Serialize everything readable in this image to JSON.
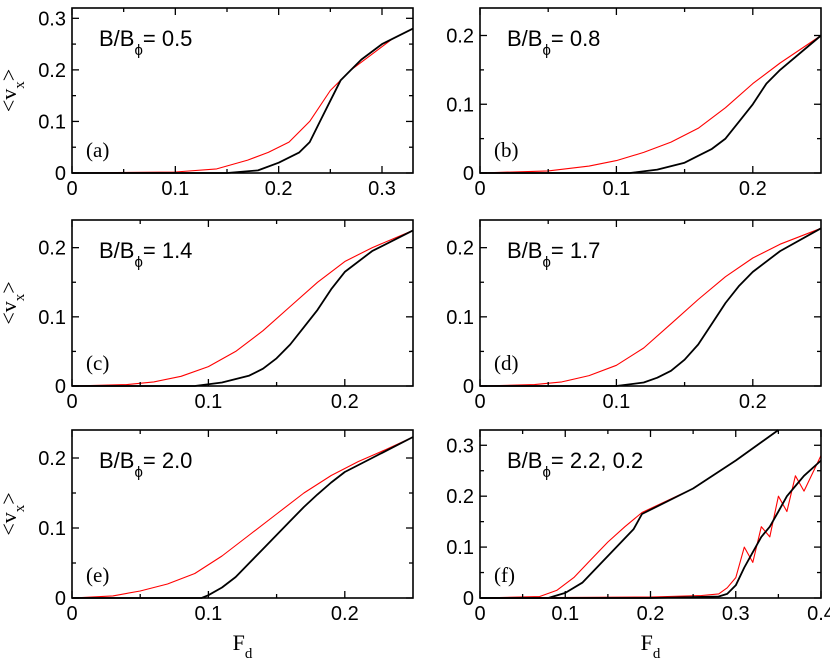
{
  "chart_data": [
    {
      "type": "line",
      "panel_label": "(a)",
      "annotation": {
        "pre": "B/B",
        "sub": "ϕ",
        "post": "= 0.5"
      },
      "xlim": [
        0,
        0.33
      ],
      "ylim": [
        0,
        0.32
      ],
      "xticks": [
        0,
        0.1,
        0.2,
        0.3
      ],
      "xtick_labels": [
        "0",
        "0.1",
        "0.2",
        "0.3"
      ],
      "yticks": [
        0,
        0.1,
        0.2,
        0.3
      ],
      "ytick_labels": [
        "0",
        "0.1",
        "0.2",
        "0.3"
      ],
      "ylabel": {
        "main": "<v",
        "sub": "x",
        "end": ">"
      },
      "xlabel": null,
      "series": [
        {
          "color": "#ff0000",
          "x": [
            0,
            0.1,
            0.14,
            0.17,
            0.19,
            0.21,
            0.23,
            0.25,
            0.27,
            0.29,
            0.31,
            0.33
          ],
          "y": [
            0,
            0.002,
            0.008,
            0.025,
            0.04,
            0.06,
            0.1,
            0.16,
            0.2,
            0.23,
            0.26,
            0.28
          ]
        },
        {
          "color": "#000000",
          "x": [
            0,
            0.15,
            0.18,
            0.2,
            0.22,
            0.23,
            0.24,
            0.25,
            0.26,
            0.27,
            0.28,
            0.3,
            0.33
          ],
          "y": [
            0,
            0,
            0.005,
            0.02,
            0.04,
            0.06,
            0.1,
            0.14,
            0.18,
            0.2,
            0.22,
            0.25,
            0.28
          ]
        }
      ]
    },
    {
      "type": "line",
      "panel_label": "(b)",
      "annotation": {
        "pre": "B/B",
        "sub": "ϕ",
        "post": "= 0.8"
      },
      "xlim": [
        0,
        0.25
      ],
      "ylim": [
        0,
        0.24
      ],
      "xticks": [
        0,
        0.1,
        0.2
      ],
      "xtick_labels": [
        "0",
        "0.1",
        "0.2"
      ],
      "yticks": [
        0,
        0.1,
        0.2
      ],
      "ytick_labels": [
        "0",
        "0.1",
        "0.2"
      ],
      "ylabel": null,
      "xlabel": null,
      "series": [
        {
          "color": "#ff0000",
          "x": [
            0,
            0.05,
            0.08,
            0.1,
            0.12,
            0.14,
            0.16,
            0.18,
            0.2,
            0.22,
            0.25
          ],
          "y": [
            0,
            0.003,
            0.01,
            0.018,
            0.03,
            0.045,
            0.065,
            0.095,
            0.13,
            0.16,
            0.2
          ]
        },
        {
          "color": "#000000",
          "x": [
            0,
            0.11,
            0.13,
            0.15,
            0.16,
            0.17,
            0.18,
            0.19,
            0.2,
            0.21,
            0.22,
            0.25
          ],
          "y": [
            0,
            0,
            0.005,
            0.015,
            0.025,
            0.035,
            0.05,
            0.075,
            0.1,
            0.13,
            0.15,
            0.2
          ]
        }
      ]
    },
    {
      "type": "line",
      "panel_label": "(c)",
      "annotation": {
        "pre": "B/B",
        "sub": "ϕ",
        "post": "= 1.4"
      },
      "xlim": [
        0,
        0.25
      ],
      "ylim": [
        0,
        0.24
      ],
      "xticks": [
        0,
        0.1,
        0.2
      ],
      "xtick_labels": [
        "0",
        "0.1",
        "0.2"
      ],
      "yticks": [
        0,
        0.1,
        0.2
      ],
      "ytick_labels": [
        "0",
        "0.1",
        "0.2"
      ],
      "ylabel": {
        "main": "<v",
        "sub": "x",
        "end": ">"
      },
      "xlabel": null,
      "series": [
        {
          "color": "#ff0000",
          "x": [
            0,
            0.04,
            0.06,
            0.08,
            0.1,
            0.12,
            0.14,
            0.16,
            0.18,
            0.2,
            0.22,
            0.25
          ],
          "y": [
            0,
            0.002,
            0.006,
            0.014,
            0.028,
            0.05,
            0.08,
            0.115,
            0.15,
            0.18,
            0.2,
            0.225
          ]
        },
        {
          "color": "#000000",
          "x": [
            0,
            0.09,
            0.11,
            0.13,
            0.14,
            0.15,
            0.16,
            0.17,
            0.18,
            0.19,
            0.2,
            0.22,
            0.25
          ],
          "y": [
            0,
            0,
            0.005,
            0.015,
            0.025,
            0.04,
            0.06,
            0.085,
            0.11,
            0.14,
            0.165,
            0.195,
            0.225
          ]
        }
      ]
    },
    {
      "type": "line",
      "panel_label": "(d)",
      "annotation": {
        "pre": "B/B",
        "sub": "ϕ",
        "post": "= 1.7"
      },
      "xlim": [
        0,
        0.25
      ],
      "ylim": [
        0,
        0.24
      ],
      "xticks": [
        0,
        0.1,
        0.2
      ],
      "xtick_labels": [
        "0",
        "0.1",
        "0.2"
      ],
      "yticks": [
        0,
        0.1,
        0.2
      ],
      "ytick_labels": [
        "0",
        "0.1",
        "0.2"
      ],
      "ylabel": null,
      "xlabel": null,
      "series": [
        {
          "color": "#ff0000",
          "x": [
            0,
            0.04,
            0.06,
            0.08,
            0.1,
            0.12,
            0.14,
            0.16,
            0.18,
            0.2,
            0.22,
            0.25
          ],
          "y": [
            0,
            0.002,
            0.006,
            0.015,
            0.03,
            0.055,
            0.09,
            0.125,
            0.158,
            0.185,
            0.205,
            0.228
          ]
        },
        {
          "color": "#000000",
          "x": [
            0,
            0.1,
            0.12,
            0.13,
            0.14,
            0.15,
            0.16,
            0.17,
            0.18,
            0.19,
            0.2,
            0.22,
            0.25
          ],
          "y": [
            0,
            0,
            0.005,
            0.012,
            0.022,
            0.038,
            0.06,
            0.09,
            0.12,
            0.145,
            0.165,
            0.195,
            0.228
          ]
        }
      ]
    },
    {
      "type": "line",
      "panel_label": "(e)",
      "annotation": {
        "pre": "B/B",
        "sub": "ϕ",
        "post": "= 2.0"
      },
      "xlim": [
        0,
        0.25
      ],
      "ylim": [
        0,
        0.24
      ],
      "xticks": [
        0,
        0.1,
        0.2
      ],
      "xtick_labels": [
        "0",
        "0.1",
        "0.2"
      ],
      "yticks": [
        0,
        0.1,
        0.2
      ],
      "ytick_labels": [
        "0",
        "0.1",
        "0.2"
      ],
      "ylabel": {
        "main": "<v",
        "sub": "x",
        "end": ">"
      },
      "xlabel": {
        "main": "F",
        "sub": "d"
      },
      "series": [
        {
          "color": "#ff0000",
          "x": [
            0,
            0.03,
            0.05,
            0.07,
            0.09,
            0.11,
            0.13,
            0.15,
            0.17,
            0.19,
            0.21,
            0.23,
            0.25
          ],
          "y": [
            0,
            0.003,
            0.01,
            0.02,
            0.035,
            0.06,
            0.09,
            0.12,
            0.15,
            0.175,
            0.195,
            0.212,
            0.23
          ]
        },
        {
          "color": "#000000",
          "x": [
            0,
            0.095,
            0.1,
            0.11,
            0.12,
            0.13,
            0.14,
            0.15,
            0.16,
            0.17,
            0.18,
            0.19,
            0.2,
            0.22,
            0.25
          ],
          "y": [
            0,
            0,
            0.004,
            0.015,
            0.03,
            0.05,
            0.07,
            0.09,
            0.11,
            0.13,
            0.148,
            0.165,
            0.18,
            0.2,
            0.23
          ]
        }
      ]
    },
    {
      "type": "line",
      "panel_label": "(f)",
      "annotation": {
        "pre": "B/B",
        "sub": "ϕ",
        "post": "= 2.2, 0.2"
      },
      "xlim": [
        0,
        0.4
      ],
      "ylim": [
        0,
        0.33
      ],
      "xticks": [
        0,
        0.1,
        0.2,
        0.3,
        0.4
      ],
      "xtick_labels": [
        "0",
        "0.1",
        "0.2",
        "0.3",
        "0.4"
      ],
      "yticks": [
        0,
        0.1,
        0.2,
        0.3
      ],
      "ytick_labels": [
        "0",
        "0.1",
        "0.2",
        "0.3"
      ],
      "ylabel": null,
      "xlabel": {
        "main": "F",
        "sub": "d"
      },
      "series": [
        {
          "color": "#ff0000",
          "x": [
            0,
            0.07,
            0.09,
            0.11,
            0.13,
            0.15,
            0.17,
            0.19,
            0.25,
            0.3,
            0.35
          ],
          "y": [
            0,
            0.003,
            0.015,
            0.04,
            0.075,
            0.11,
            0.14,
            0.168,
            0.215,
            0.27,
            0.33
          ]
        },
        {
          "color": "#000000",
          "x": [
            0,
            0.08,
            0.1,
            0.12,
            0.14,
            0.16,
            0.18,
            0.19,
            0.25,
            0.3,
            0.35
          ],
          "y": [
            0,
            0,
            0.01,
            0.03,
            0.065,
            0.1,
            0.135,
            0.165,
            0.215,
            0.27,
            0.33
          ]
        },
        {
          "color": "#ff0000",
          "x": [
            0,
            0.2,
            0.26,
            0.28,
            0.29,
            0.3,
            0.31,
            0.32,
            0.33,
            0.34,
            0.35,
            0.36,
            0.37,
            0.38,
            0.4
          ],
          "y": [
            0,
            0.002,
            0.005,
            0.008,
            0.02,
            0.04,
            0.1,
            0.07,
            0.14,
            0.12,
            0.2,
            0.17,
            0.24,
            0.21,
            0.28
          ]
        },
        {
          "color": "#000000",
          "x": [
            0,
            0.2,
            0.28,
            0.29,
            0.3,
            0.31,
            0.32,
            0.33,
            0.34,
            0.35,
            0.36,
            0.37,
            0.38,
            0.4
          ],
          "y": [
            0,
            0,
            0.003,
            0.008,
            0.025,
            0.06,
            0.09,
            0.12,
            0.14,
            0.17,
            0.2,
            0.22,
            0.24,
            0.27
          ]
        }
      ]
    }
  ]
}
